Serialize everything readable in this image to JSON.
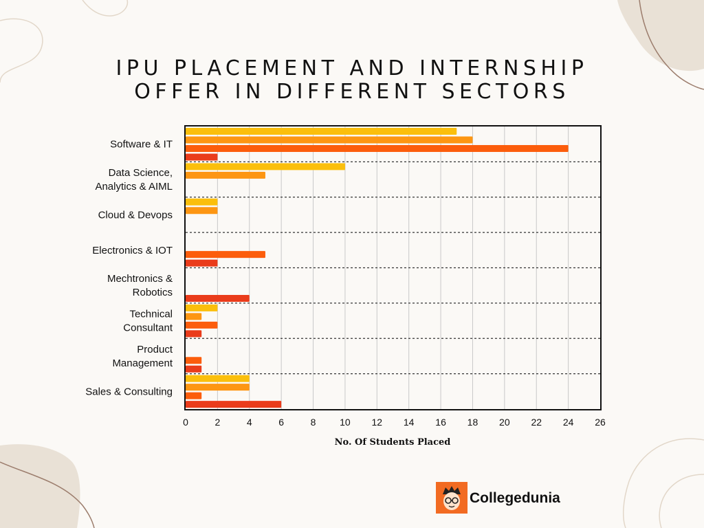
{
  "page": {
    "title_line1": "IPU PLACEMENT AND INTERNSHIP",
    "title_line2": "OFFER IN DIFFERENT SECTORS",
    "brand": "Collegedunia"
  },
  "colors": {
    "background": "#fbf9f6",
    "decor": "#e9e1d6",
    "brand": "#f26b22",
    "bar_palette": [
      "#fbbf0c",
      "#fd9613",
      "#fc5d0c",
      "#ea3c1b"
    ]
  },
  "chart_data": {
    "type": "bar",
    "orientation": "horizontal",
    "title": "IPU PLACEMENT AND INTERNSHIP OFFER IN DIFFERENT SECTORS",
    "xlabel": "No. Of Students Placed",
    "ylabel": "",
    "xlim": [
      0,
      26
    ],
    "xticks": [
      0,
      2,
      4,
      6,
      8,
      10,
      12,
      14,
      16,
      18,
      20,
      22,
      24,
      26
    ],
    "grid": true,
    "legend": "none",
    "categories": [
      "Software & IT",
      "Data Science, Analytics & AIML",
      "Cloud & Devops",
      "Electronics & IOT",
      "Mechtronics & Robotics",
      "Technical Consultant",
      "Product Management",
      "Sales & Consulting"
    ],
    "category_lines": [
      [
        "Software & IT"
      ],
      [
        "Data Science,",
        "Analytics & AIML"
      ],
      [
        "Cloud & Devops"
      ],
      [
        "Electronics & IOT"
      ],
      [
        "Mechtronics &",
        "Robotics"
      ],
      [
        "Technical",
        "Consultant"
      ],
      [
        "Product",
        "Management"
      ],
      [
        "Sales & Consulting"
      ]
    ],
    "series": [
      {
        "color": "#fbbf0c",
        "values": [
          17,
          10,
          2,
          0,
          0,
          2,
          0,
          4
        ]
      },
      {
        "color": "#fd9613",
        "values": [
          18,
          5,
          2,
          0,
          0,
          1,
          0,
          4
        ]
      },
      {
        "color": "#fc5d0c",
        "values": [
          24,
          0,
          0,
          5,
          0,
          2,
          1,
          1
        ]
      },
      {
        "color": "#ea3c1b",
        "values": [
          2,
          0,
          0,
          2,
          4,
          1,
          1,
          6
        ]
      }
    ]
  }
}
